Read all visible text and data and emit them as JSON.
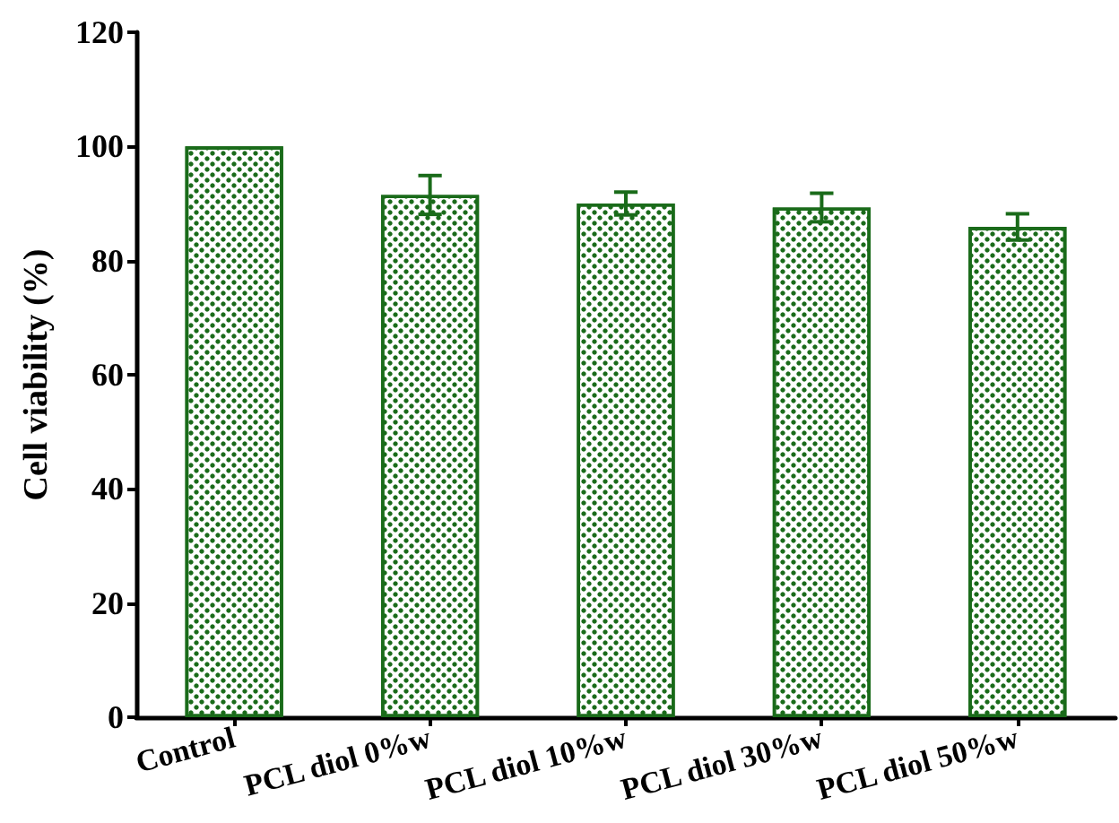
{
  "chart_data": {
    "type": "bar",
    "ylabel": "Cell viability (%)",
    "categories": [
      "Control",
      "PCL diol 0%w",
      "PCL diol 10%w",
      "PCL diol 30%w",
      "PCL diol 50%w"
    ],
    "values": [
      100,
      91.5,
      90,
      89.3,
      85.9
    ],
    "errors": [
      null,
      3.4,
      2,
      2.5,
      2.3
    ],
    "color": "#1a6b1a",
    "ylim": [
      0,
      120
    ],
    "yticks": [
      0,
      20,
      40,
      60,
      80,
      100,
      120
    ]
  }
}
